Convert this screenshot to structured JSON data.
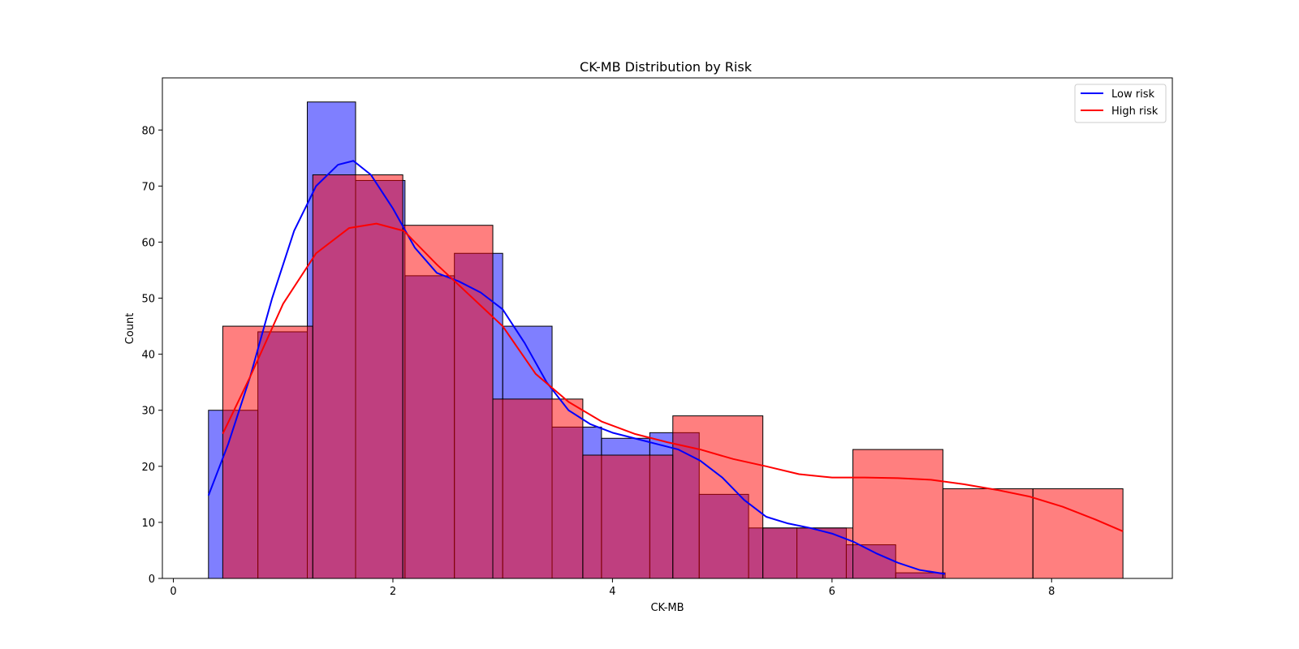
{
  "chart_data": {
    "type": "bar",
    "title": "CK-MB Distribution by Risk",
    "xlabel": "CK-MB",
    "ylabel": "Count",
    "xlim": [
      -0.1,
      9.1
    ],
    "ylim": [
      0,
      89.3
    ],
    "xticks": [
      0,
      2,
      4,
      6,
      8
    ],
    "yticks": [
      0,
      10,
      20,
      30,
      40,
      50,
      60,
      70,
      80
    ],
    "grid": false,
    "legend_position": "top-right",
    "series": [
      {
        "name": "Low risk",
        "color": "#0000ff",
        "bins": [
          {
            "x0": 0.32,
            "x1": 0.77,
            "count": 30
          },
          {
            "x0": 0.77,
            "x1": 1.22,
            "count": 44
          },
          {
            "x0": 1.22,
            "x1": 1.66,
            "count": 85
          },
          {
            "x0": 1.66,
            "x1": 2.11,
            "count": 71
          },
          {
            "x0": 2.11,
            "x1": 2.56,
            "count": 54
          },
          {
            "x0": 2.56,
            "x1": 3.0,
            "count": 58
          },
          {
            "x0": 3.0,
            "x1": 3.45,
            "count": 45
          },
          {
            "x0": 3.45,
            "x1": 3.9,
            "count": 27
          },
          {
            "x0": 3.9,
            "x1": 4.34,
            "count": 25
          },
          {
            "x0": 4.34,
            "x1": 4.79,
            "count": 26
          },
          {
            "x0": 4.79,
            "x1": 5.24,
            "count": 15
          },
          {
            "x0": 5.24,
            "x1": 5.68,
            "count": 9
          },
          {
            "x0": 5.68,
            "x1": 6.13,
            "count": 9
          },
          {
            "x0": 6.13,
            "x1": 6.58,
            "count": 6
          },
          {
            "x0": 6.58,
            "x1": 7.03,
            "count": 1
          }
        ],
        "kde": {
          "x": [
            0.32,
            0.5,
            0.7,
            0.9,
            1.1,
            1.3,
            1.5,
            1.64,
            1.8,
            2.0,
            2.2,
            2.4,
            2.6,
            2.8,
            3.0,
            3.2,
            3.4,
            3.6,
            3.8,
            4.0,
            4.2,
            4.4,
            4.6,
            4.8,
            5.0,
            5.2,
            5.4,
            5.6,
            5.8,
            6.0,
            6.2,
            6.4,
            6.6,
            6.8,
            7.03
          ],
          "y": [
            14.8,
            24,
            36,
            50,
            62,
            70,
            73.8,
            74.5,
            72,
            66,
            59,
            54.5,
            53,
            51,
            48,
            42,
            35,
            30,
            27.5,
            26,
            25,
            24,
            23,
            21,
            18,
            14,
            11,
            9.8,
            9,
            8,
            6.5,
            4.5,
            2.8,
            1.5,
            0.8
          ]
        }
      },
      {
        "name": "High risk",
        "color": "#ff0000",
        "bins": [
          {
            "x0": 0.45,
            "x1": 1.27,
            "count": 45
          },
          {
            "x0": 1.27,
            "x1": 2.09,
            "count": 72
          },
          {
            "x0": 2.09,
            "x1": 2.91,
            "count": 63
          },
          {
            "x0": 2.91,
            "x1": 3.73,
            "count": 32
          },
          {
            "x0": 3.73,
            "x1": 4.55,
            "count": 22
          },
          {
            "x0": 4.55,
            "x1": 5.37,
            "count": 29
          },
          {
            "x0": 5.37,
            "x1": 6.19,
            "count": 9
          },
          {
            "x0": 6.19,
            "x1": 7.01,
            "count": 23
          },
          {
            "x0": 7.01,
            "x1": 7.83,
            "count": 16
          },
          {
            "x0": 7.83,
            "x1": 8.65,
            "count": 16
          }
        ],
        "kde": {
          "x": [
            0.45,
            0.7,
            1.0,
            1.3,
            1.6,
            1.85,
            2.1,
            2.4,
            2.7,
            3.0,
            3.3,
            3.6,
            3.9,
            4.2,
            4.5,
            4.8,
            5.1,
            5.4,
            5.7,
            6.0,
            6.3,
            6.6,
            6.9,
            7.2,
            7.5,
            7.8,
            8.1,
            8.4,
            8.65
          ],
          "y": [
            25.8,
            36,
            49,
            58,
            62.5,
            63.3,
            62,
            56,
            50.5,
            45,
            36.5,
            31.5,
            28,
            25.8,
            24.3,
            23,
            21.3,
            20,
            18.6,
            18,
            18,
            17.9,
            17.6,
            16.8,
            15.8,
            14.6,
            12.8,
            10.5,
            8.4
          ]
        }
      }
    ]
  }
}
